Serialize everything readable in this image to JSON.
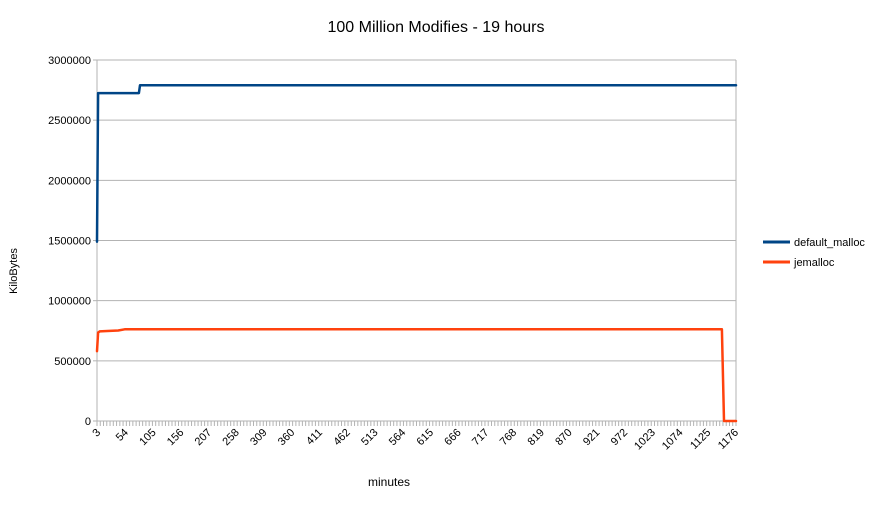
{
  "chart_data": {
    "type": "line",
    "title": "100 Million Modifies - 19 hours",
    "xlabel": "minutes",
    "ylabel": "KiloBytes",
    "ylim": [
      0,
      3000000
    ],
    "yticks": [
      0,
      500000,
      1000000,
      1500000,
      2000000,
      2500000,
      3000000
    ],
    "ytick_labels": [
      "0",
      "500000",
      "1000000",
      "1500000",
      "2000000",
      "2500000",
      "3000000"
    ],
    "xlim": [
      1,
      1176
    ],
    "xticks": [
      3,
      54,
      105,
      156,
      207,
      258,
      309,
      360,
      411,
      462,
      513,
      564,
      615,
      666,
      717,
      768,
      819,
      870,
      921,
      972,
      1023,
      1074,
      1125,
      1176
    ],
    "xtick_labels": [
      "3",
      "54",
      "105",
      "156",
      "207",
      "258",
      "309",
      "360",
      "411",
      "462",
      "513",
      "564",
      "615",
      "666",
      "717",
      "768",
      "819",
      "870",
      "921",
      "972",
      "1023",
      "1074",
      "1125",
      "1176"
    ],
    "grid": "horizontal",
    "legend_position": "right",
    "series": [
      {
        "name": "default_malloc",
        "color": "#004586",
        "x": [
          1,
          3,
          78,
          80,
          1176
        ],
        "y": [
          1490000,
          2725000,
          2725000,
          2790000,
          2790000
        ]
      },
      {
        "name": "jemalloc",
        "color": "#ff420e",
        "x": [
          1,
          3,
          6,
          20,
          40,
          52,
          1125,
          1150,
          1154,
          1176
        ],
        "y": [
          580000,
          735000,
          745000,
          748000,
          752000,
          762000,
          762000,
          762000,
          0,
          0
        ]
      }
    ]
  }
}
